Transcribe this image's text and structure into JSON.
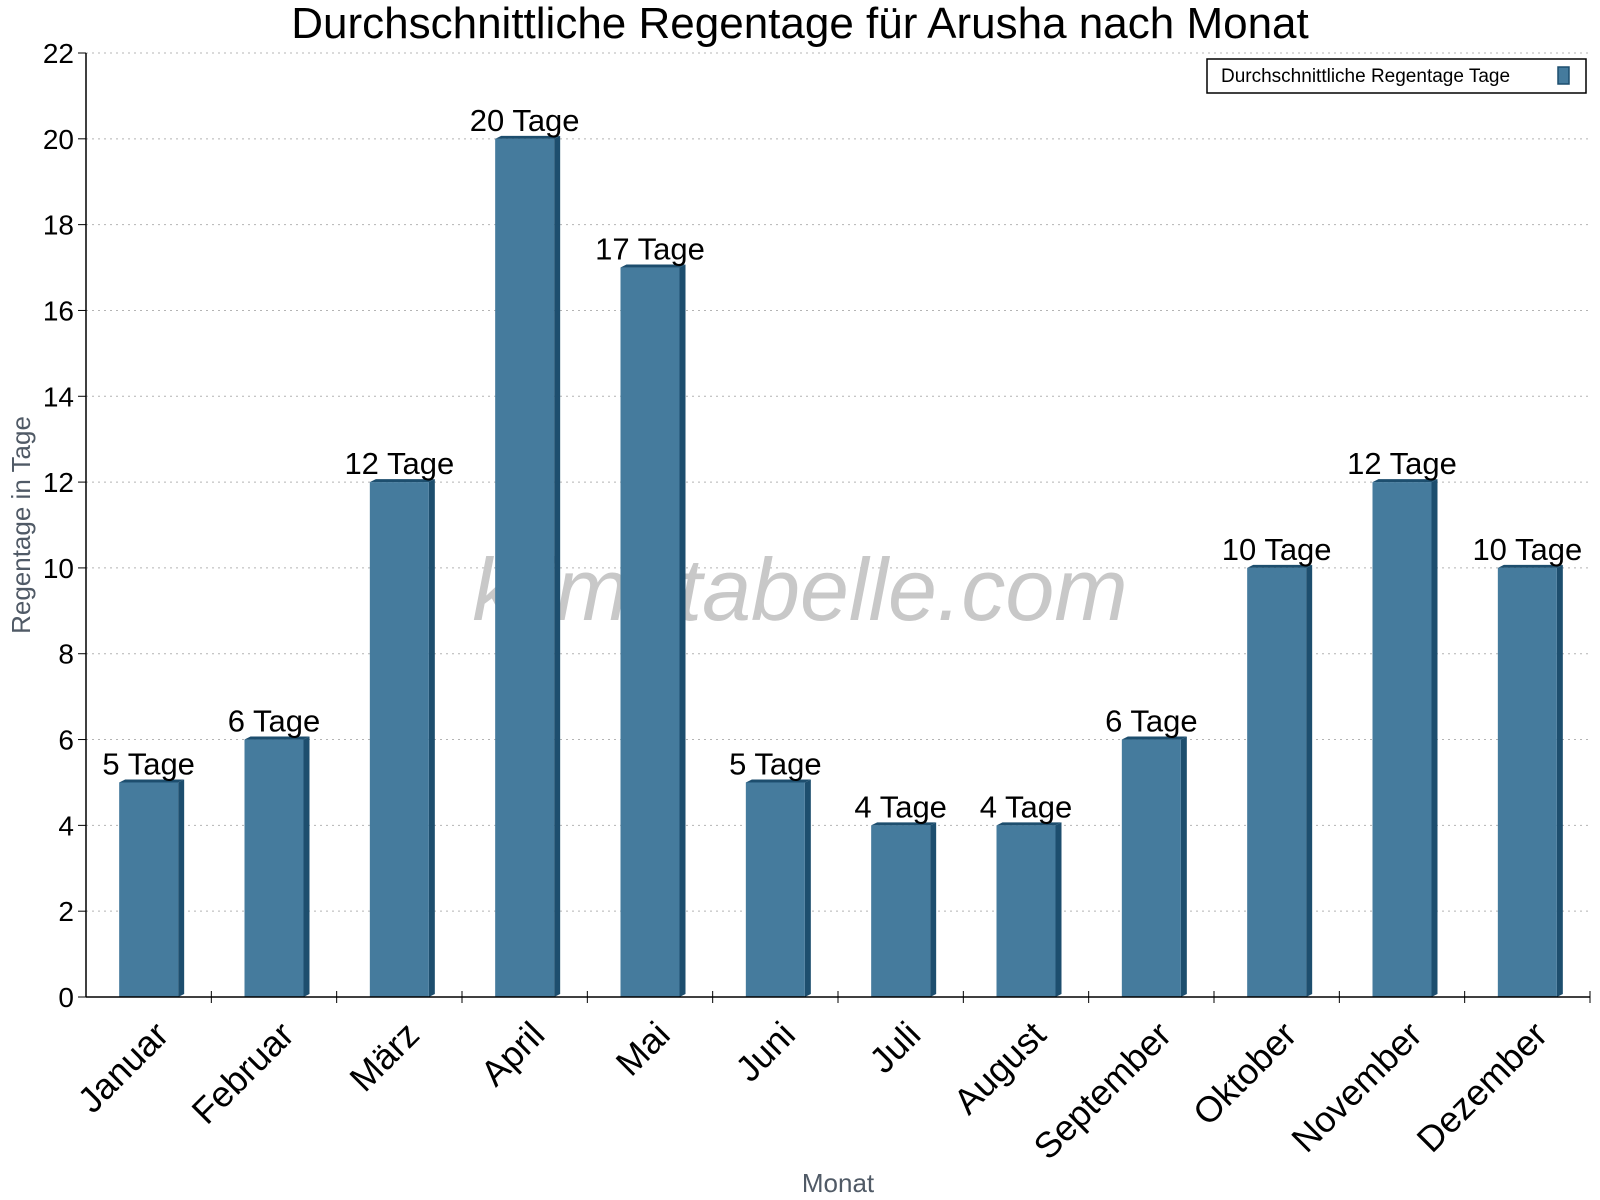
{
  "chart_data": {
    "type": "bar",
    "title": "Durchschnittliche Regentage für Arusha nach Monat",
    "xlabel": "Monat",
    "ylabel": "Regentage in Tage",
    "categories": [
      "Januar",
      "Februar",
      "März",
      "April",
      "Mai",
      "Juni",
      "Juli",
      "August",
      "September",
      "Oktober",
      "November",
      "Dezember"
    ],
    "series": [
      {
        "name": "Durchschnittliche Regentage Tage",
        "values": [
          5,
          6,
          12,
          20,
          17,
          5,
          4,
          4,
          6,
          10,
          12,
          10
        ],
        "data_labels": [
          "5 Tage",
          "6 Tage",
          "12 Tage",
          "20 Tage",
          "17 Tage",
          "5 Tage",
          "4 Tage",
          "4 Tage",
          "6 Tage",
          "10 Tage",
          "12 Tage",
          "10 Tage"
        ],
        "color": "#457b9d"
      }
    ],
    "ylim": [
      0,
      22
    ],
    "yticks": [
      0,
      2,
      4,
      6,
      8,
      10,
      12,
      14,
      16,
      18,
      20,
      22
    ],
    "grid": true,
    "legend_position": "top-right"
  },
  "watermark": "klimatabelle.com",
  "colors": {
    "bar": "#457b9d",
    "bar_side": "#1d4e6e",
    "grid": "#b4b4b4",
    "axis_label": "#505a66"
  }
}
